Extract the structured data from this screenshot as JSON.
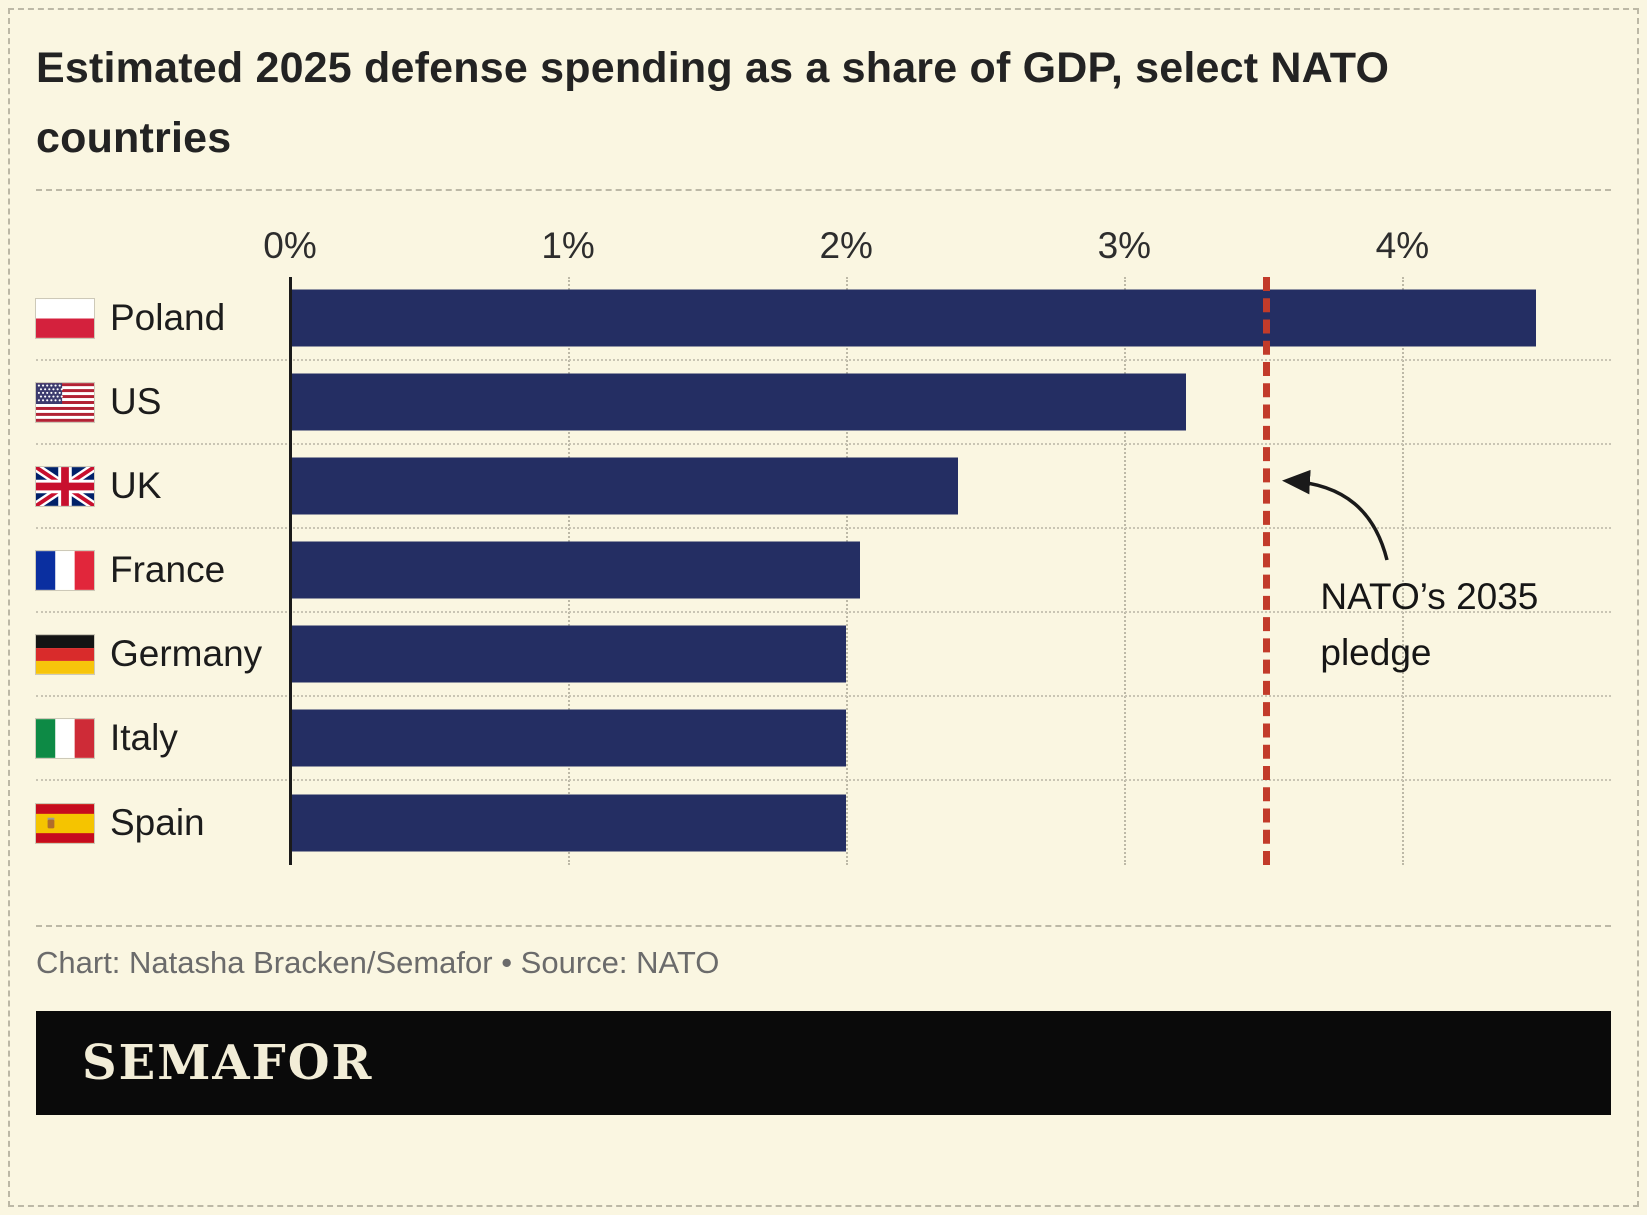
{
  "chart_data": {
    "type": "bar",
    "orientation": "horizontal",
    "title": "Estimated 2025 defense spending as a share of GDP, select NATO countries",
    "categories": [
      "Poland",
      "US",
      "UK",
      "France",
      "Germany",
      "Italy",
      "Spain"
    ],
    "values": [
      4.48,
      3.22,
      2.4,
      2.05,
      2.0,
      2.0,
      2.0
    ],
    "flags": [
      "pl",
      "us",
      "gb",
      "fr",
      "de",
      "it",
      "es"
    ],
    "x_ticks": [
      {
        "value": 0,
        "label": "0%"
      },
      {
        "value": 1,
        "label": "1%"
      },
      {
        "value": 2,
        "label": "2%"
      },
      {
        "value": 3,
        "label": "3%"
      },
      {
        "value": 4,
        "label": "4%"
      }
    ],
    "xlim": [
      0,
      4.75
    ],
    "grid": true,
    "legend": false,
    "bar_color": "#242e63",
    "reference_line": {
      "value": 3.5,
      "label": "NATO’s 2035 pledge",
      "color": "#c23b2a"
    }
  },
  "footer": {
    "credit": "Chart: Natasha Bracken/Semafor • Source: NATO"
  },
  "brand": {
    "logo": "SEMAFOR"
  }
}
